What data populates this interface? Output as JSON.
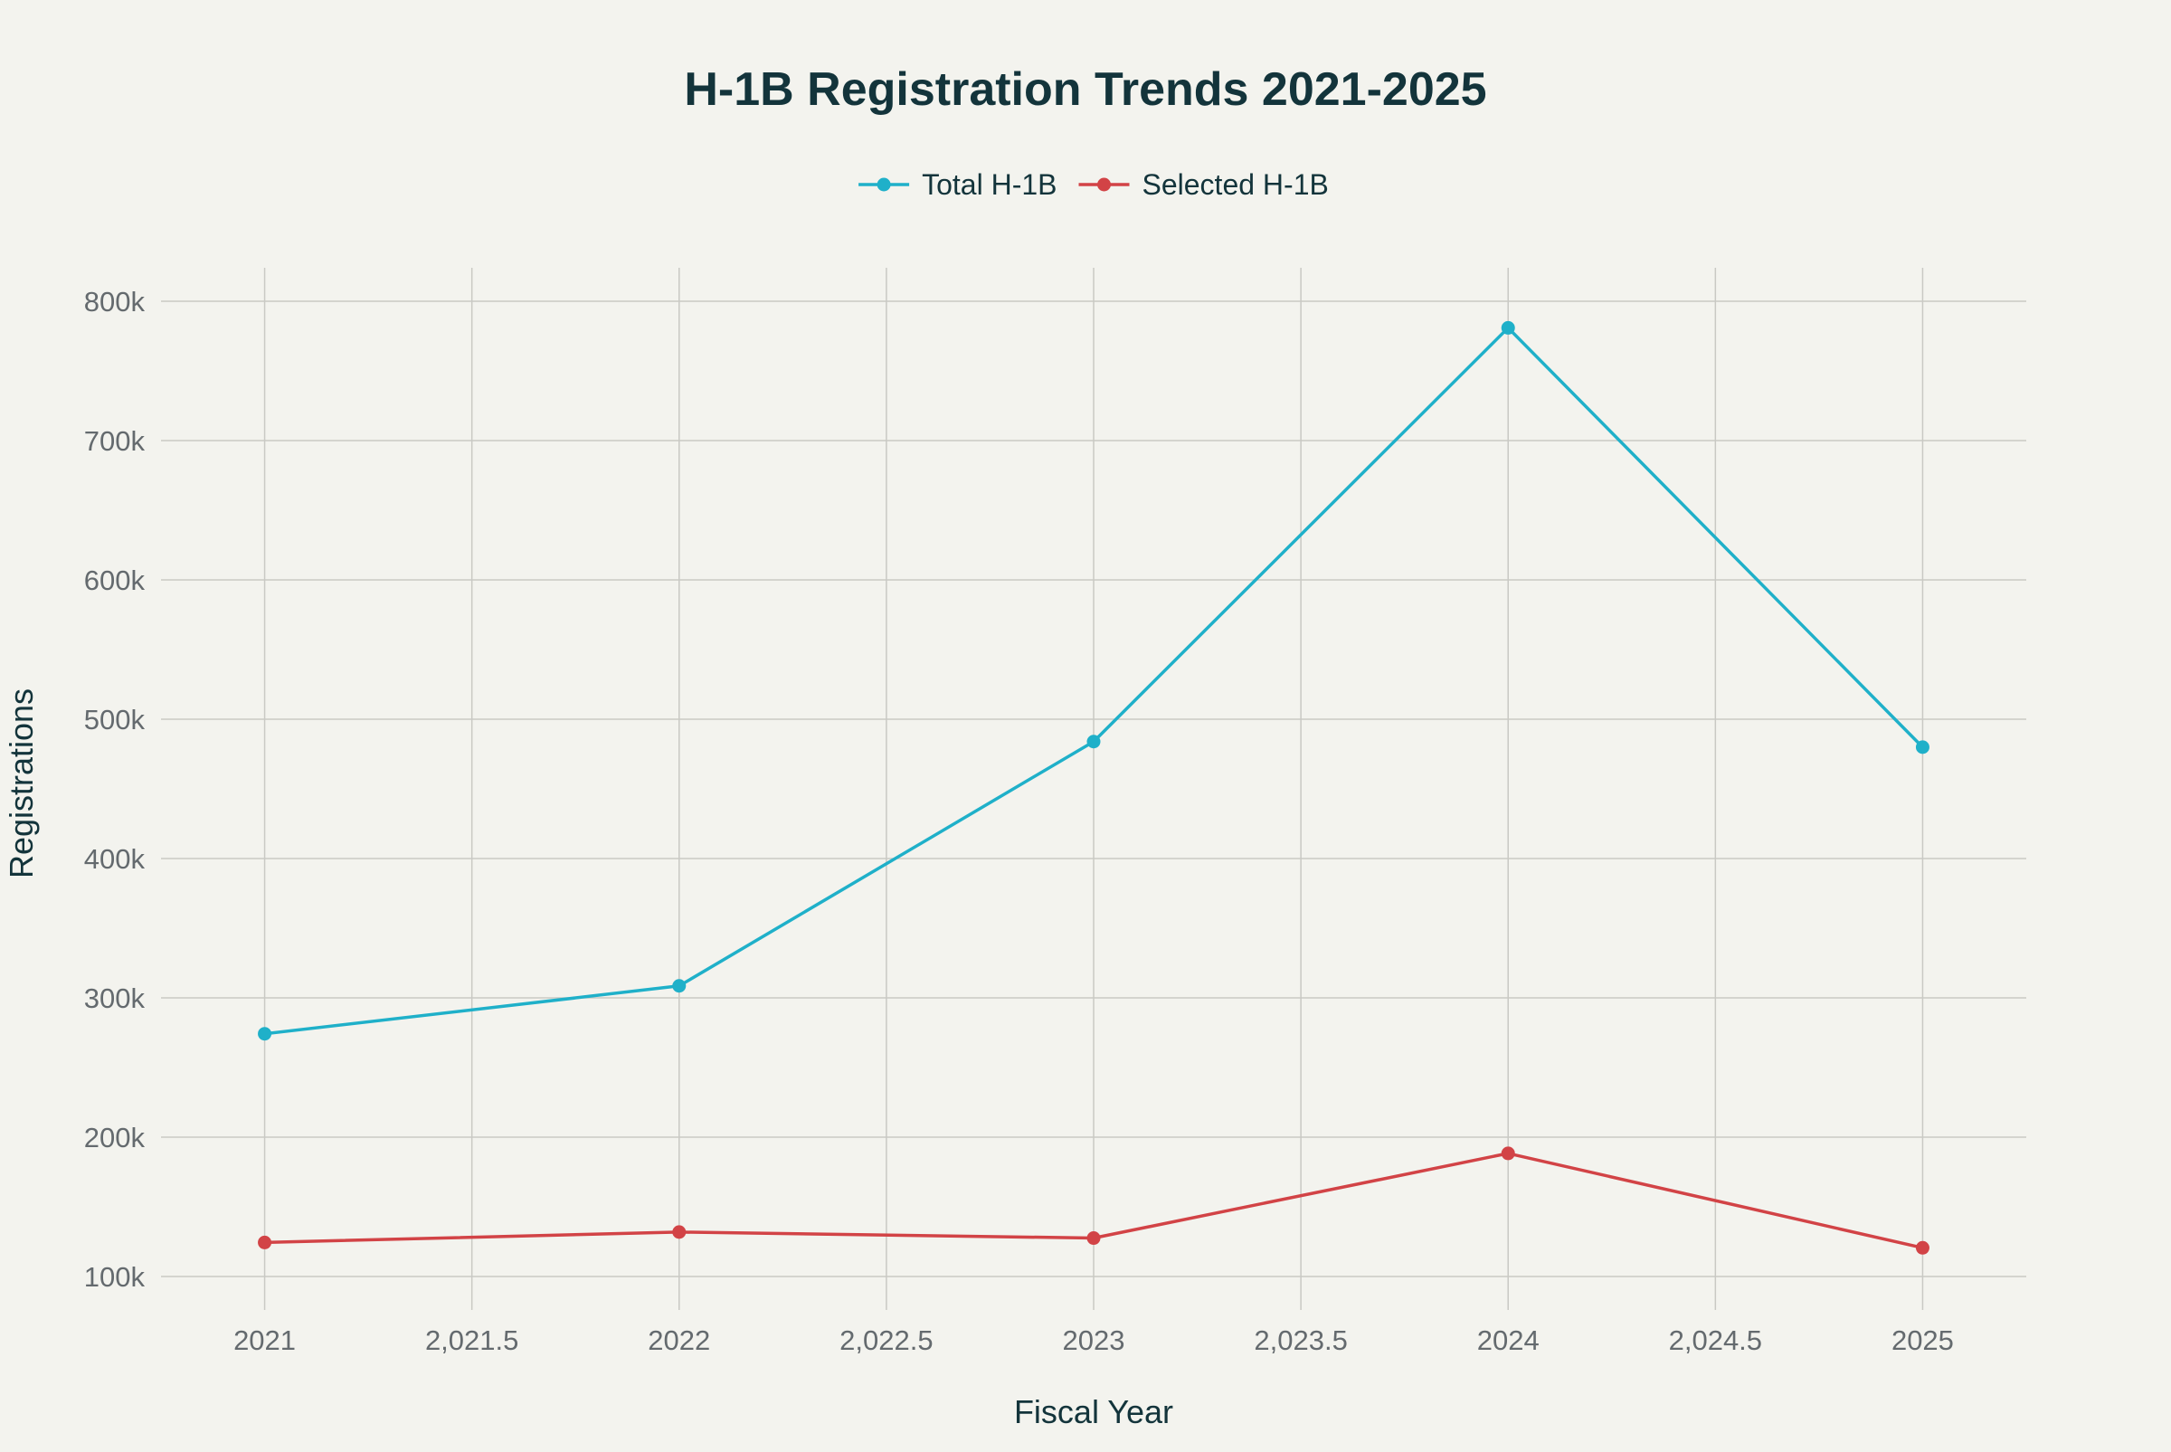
{
  "chart_data": {
    "type": "line",
    "title": "H-1B Registration Trends 2021-2025",
    "xlabel": "Fiscal Year",
    "ylabel": "Registrations",
    "x": [
      2021,
      2022,
      2023,
      2024,
      2025
    ],
    "x_ticks": [
      "2021",
      "2,021.5",
      "2022",
      "2,022.5",
      "2023",
      "2,023.5",
      "2024",
      "2,024.5",
      "2025"
    ],
    "x_tick_values": [
      2021,
      2021.5,
      2022,
      2022.5,
      2023,
      2023.5,
      2024,
      2024.5,
      2025
    ],
    "xlim": [
      2020.75,
      2025.25
    ],
    "y_ticks": [
      "100k",
      "200k",
      "300k",
      "400k",
      "500k",
      "600k",
      "700k",
      "800k"
    ],
    "y_tick_values": [
      100000,
      200000,
      300000,
      400000,
      500000,
      600000,
      700000,
      800000
    ],
    "ylim": [
      76000,
      824000
    ],
    "grid": true,
    "legend_position": "top-center",
    "series": [
      {
        "name": "Total H-1B",
        "color": "#1fb0c9",
        "values": [
          274237,
          308613,
          483927,
          780884,
          479953
        ]
      },
      {
        "name": "Selected H-1B",
        "color": "#d24346",
        "values": [
          124415,
          131924,
          127600,
          188400,
          120603
        ]
      }
    ]
  }
}
